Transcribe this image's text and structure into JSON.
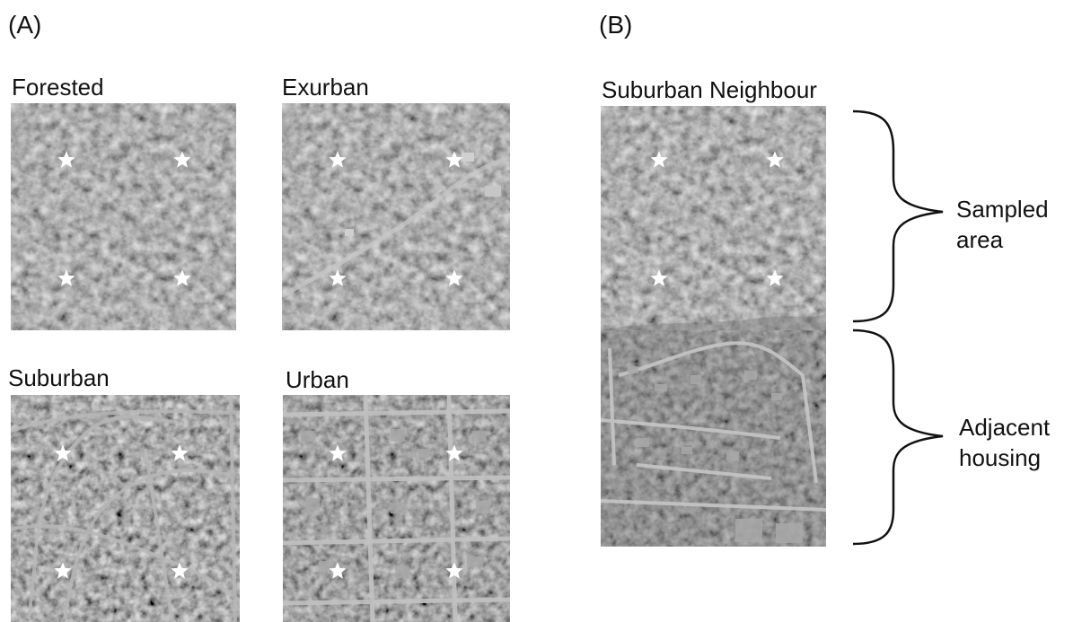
{
  "panels": {
    "a_label": "(A)",
    "b_label": "(B)"
  },
  "landscapes": {
    "forested": "Forested",
    "exurban": "Exurban",
    "suburban": "Suburban",
    "urban": "Urban",
    "suburban_neighbour": "Suburban Neighbour"
  },
  "annotations": {
    "sampled_area": [
      "Sampled",
      "area"
    ],
    "adjacent_housing": [
      "Adjacent",
      "housing"
    ]
  },
  "icons": {
    "marker": "star-icon",
    "bracket": "curly-brace-icon"
  },
  "colors": {
    "marker": "#ffffff",
    "canopy_dark": "#2e2e2e",
    "canopy_light": "#5a5a5a",
    "road": "#b8b8b8",
    "roof": "#9a9a9a"
  }
}
